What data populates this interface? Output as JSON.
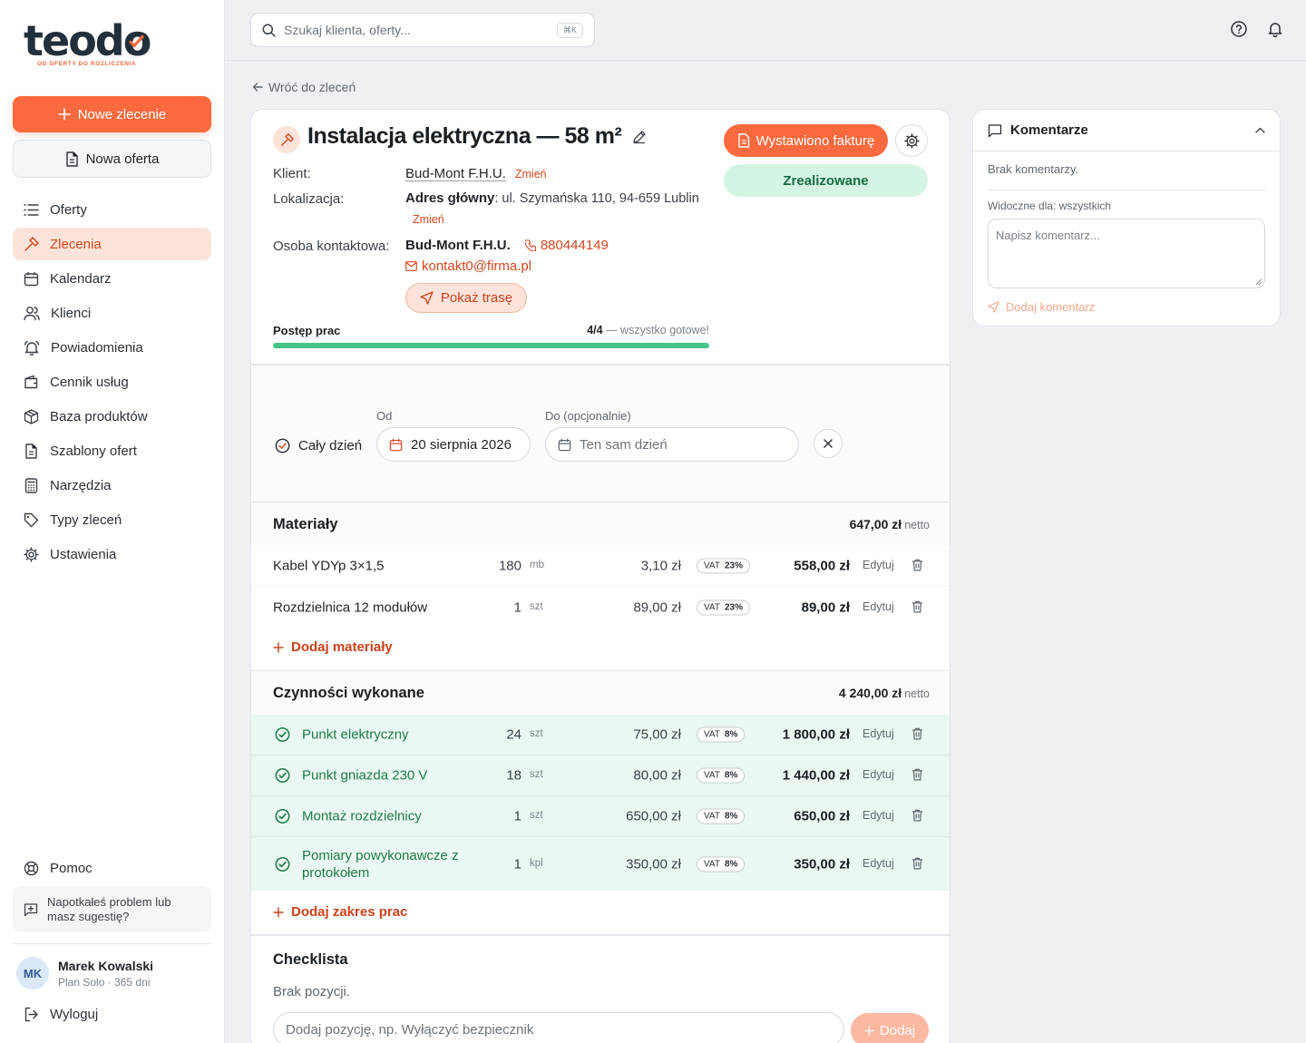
{
  "brand": {
    "logo_text": "teodo",
    "tagline": "OD OFERTY DO ROZLICZENIA",
    "accent": "#fb6a3e",
    "success": "#46c48a"
  },
  "sidebar": {
    "new_order": "Nowe zlecenie",
    "new_offer": "Nowa oferta",
    "items": [
      {
        "label": "Oferty",
        "icon": "list-icon"
      },
      {
        "label": "Zlecenia",
        "icon": "hammer-icon",
        "active": true
      },
      {
        "label": "Kalendarz",
        "icon": "calendar-icon"
      },
      {
        "label": "Klienci",
        "icon": "users-icon"
      },
      {
        "label": "Powiadomienia",
        "icon": "bell-ring-icon"
      },
      {
        "label": "Cennik usług",
        "icon": "wallet-icon"
      },
      {
        "label": "Baza produktów",
        "icon": "package-icon"
      },
      {
        "label": "Szablony ofert",
        "icon": "file-text-icon"
      },
      {
        "label": "Narzędzia",
        "icon": "calculator-icon"
      },
      {
        "label": "Typy zleceń",
        "icon": "tag-icon"
      },
      {
        "label": "Ustawienia",
        "icon": "gear-icon"
      }
    ],
    "help": "Pomoc",
    "feedback": "Napotkałeś problem lub masz sugestię?",
    "user": {
      "initials": "MK",
      "name": "Marek Kowalski",
      "plan": "Plan Solo · 365 dni"
    },
    "logout": "Wyloguj"
  },
  "topbar": {
    "search_placeholder": "Szukaj klienta, oferty...",
    "shortcut": "⌘K"
  },
  "back_link": "Wróć do zleceń",
  "order": {
    "title": "Instalacja elektryczna — 58 m²",
    "invoice_button": "Wystawiono fakturę",
    "status": "Zrealizowane",
    "client_label": "Klient:",
    "client_name": "Bud-Mont F.H.U.",
    "change": "Zmień",
    "location_label": "Lokalizacja:",
    "location_prefix": "Adres główny",
    "location_address": ": ul. Szymańska 110, 94-659 Lublin",
    "contact_label": "Osoba kontaktowa:",
    "contact_name": "Bud-Mont F.H.U.",
    "phone": "880444149",
    "email": "kontakt0@firma.pl",
    "route_button": "Pokaż trasę",
    "progress_label": "Postęp prac",
    "progress_count": "4/4",
    "progress_note": " — wszystko gotowe!",
    "progress_fraction": 1.0
  },
  "dates": {
    "all_day": "Cały dzień",
    "from_label": "Od",
    "from_value": "20 sierpnia 2026",
    "to_label": "Do (opcjonalnie)",
    "to_placeholder": "Ten sam dzień"
  },
  "materials": {
    "title": "Materiały",
    "sum": "647,00 zł",
    "sum_suffix": "netto",
    "rows": [
      {
        "name": "Kabel YDYp 3×1,5",
        "qty": "180",
        "unit": "mb",
        "price": "3,10 zł",
        "vat_label": "VAT",
        "vat": "23%",
        "total": "558,00 zł",
        "edit": "Edytuj"
      },
      {
        "name": "Rozdzielnica 12 modułów",
        "qty": "1",
        "unit": "szt",
        "price": "89,00 zł",
        "vat_label": "VAT",
        "vat": "23%",
        "total": "89,00 zł",
        "edit": "Edytuj"
      }
    ],
    "add": "Dodaj materiały"
  },
  "work": {
    "title": "Czynności wykonane",
    "sum": "4 240,00 zł",
    "sum_suffix": "netto",
    "rows": [
      {
        "name": "Punkt elektryczny",
        "qty": "24",
        "unit": "szt",
        "price": "75,00 zł",
        "vat_label": "VAT",
        "vat": "8%",
        "total": "1 800,00 zł",
        "edit": "Edytuj"
      },
      {
        "name": "Punkt gniazda 230 V",
        "qty": "18",
        "unit": "szt",
        "price": "80,00 zł",
        "vat_label": "VAT",
        "vat": "8%",
        "total": "1 440,00 zł",
        "edit": "Edytuj"
      },
      {
        "name": "Montaż rozdzielnicy",
        "qty": "1",
        "unit": "szt",
        "price": "650,00 zł",
        "vat_label": "VAT",
        "vat": "8%",
        "total": "650,00 zł",
        "edit": "Edytuj"
      },
      {
        "name": "Pomiary powykonawcze z protokołem",
        "qty": "1",
        "unit": "kpl",
        "price": "350,00 zł",
        "vat_label": "VAT",
        "vat": "8%",
        "total": "350,00 zł",
        "edit": "Edytuj"
      }
    ],
    "add": "Dodaj zakres prac"
  },
  "checklist": {
    "title": "Checklista",
    "empty": "Brak pozycji.",
    "placeholder": "Dodaj pozycję, np. Wyłączyć bezpiecznik",
    "add": "Dodaj"
  },
  "comments": {
    "title": "Komentarze",
    "empty": "Brak komentarzy.",
    "visibility": "Widoczne dla: wszystkich",
    "placeholder": "Napisz komentarz...",
    "add": "Dodaj komentarz"
  }
}
